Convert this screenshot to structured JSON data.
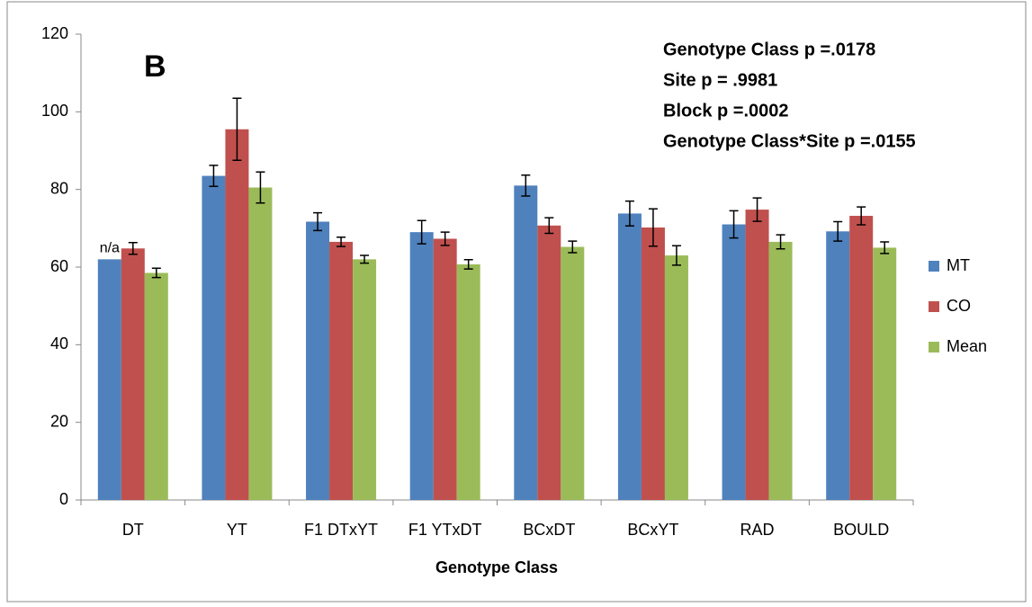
{
  "chart_data": {
    "type": "bar",
    "xlabel": "Genotype Class",
    "categories": [
      "DT",
      "YT",
      "F1 DTxYT",
      "F1 YTxDT",
      "BCxDT",
      "BCxYT",
      "RAD",
      "BOULD"
    ],
    "series": [
      {
        "name": "MT",
        "color": "#4f81bd",
        "values": [
          62,
          83.5,
          71.7,
          69,
          81,
          73.8,
          71,
          69.2
        ],
        "errors": [
          null,
          2.7,
          2.3,
          3,
          2.7,
          3.2,
          3.5,
          2.5
        ]
      },
      {
        "name": "CO",
        "color": "#c0504d",
        "values": [
          64.8,
          95.5,
          66.5,
          67.3,
          70.7,
          70.2,
          74.8,
          73.2
        ],
        "errors": [
          1.5,
          8,
          1.2,
          1.7,
          2,
          4.8,
          3,
          2.3
        ]
      },
      {
        "name": "Mean",
        "color": "#9bbb59",
        "values": [
          58.5,
          80.5,
          62,
          60.7,
          65.2,
          63,
          66.5,
          65
        ],
        "errors": [
          1.2,
          4,
          1,
          1.2,
          1.5,
          2.5,
          1.8,
          1.5
        ]
      }
    ],
    "ylim": [
      0,
      120
    ],
    "yticks": [
      0,
      20,
      40,
      60,
      80,
      100,
      120
    ],
    "legend": "right",
    "panel_label": "B",
    "na_label": "n/a",
    "annotations": [
      "Genotype Class  p =.0178",
      "Site p = .9981",
      "Block p =.0002",
      "Genotype Class*Site p =.0155"
    ]
  }
}
